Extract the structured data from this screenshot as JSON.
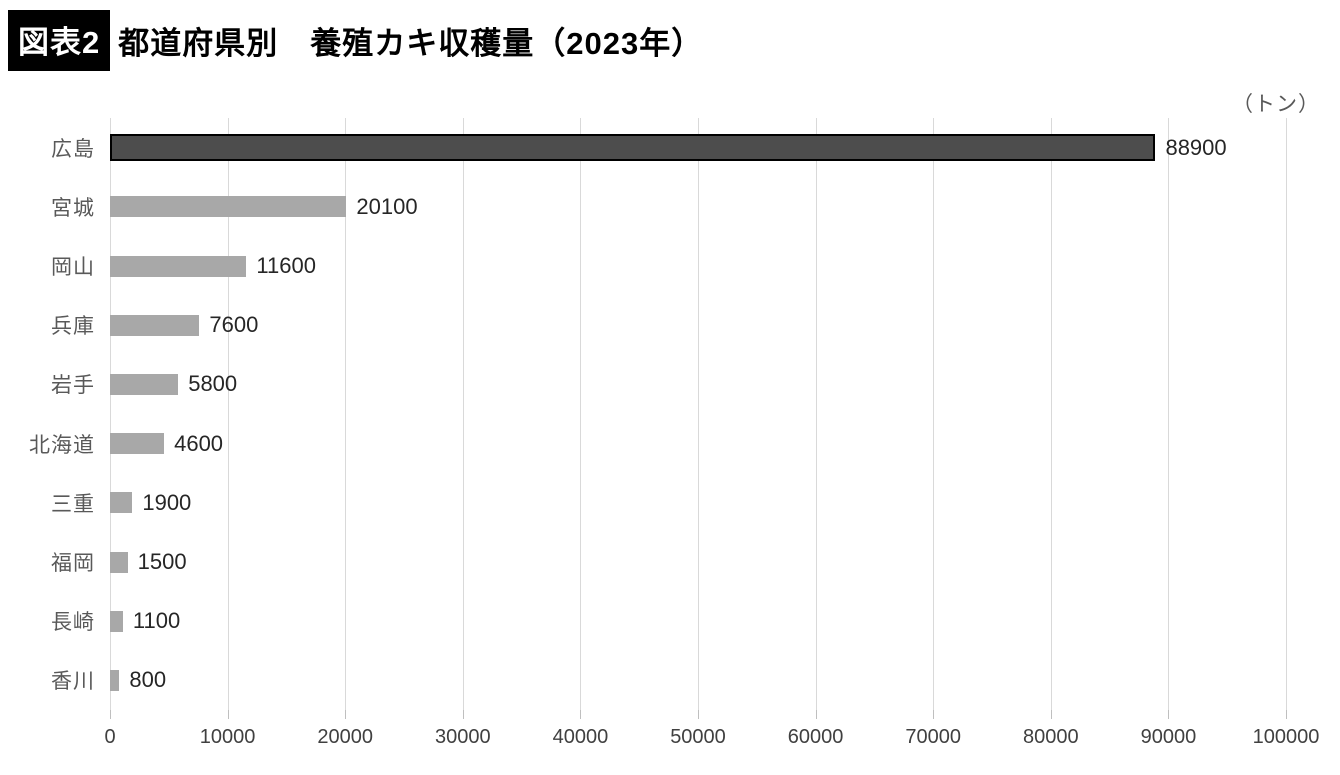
{
  "header": {
    "badge": "図表2",
    "title": "都道府県別　養殖カキ収穫量（2023年）",
    "unit": "（トン）"
  },
  "chart_data": {
    "type": "bar",
    "orientation": "horizontal",
    "title": "都道府県別 養殖カキ収穫量（2023年）",
    "unit": "トン",
    "categories": [
      "広島",
      "宮城",
      "岡山",
      "兵庫",
      "岩手",
      "北海道",
      "三重",
      "福岡",
      "長崎",
      "香川"
    ],
    "values": [
      88900,
      20100,
      11600,
      7600,
      5800,
      4600,
      1900,
      1500,
      1100,
      800
    ],
    "xlim": [
      0,
      100000
    ],
    "x_ticks": [
      0,
      10000,
      20000,
      30000,
      40000,
      50000,
      60000,
      70000,
      80000,
      90000,
      100000
    ],
    "grid": true,
    "value_labels": true,
    "highlight_index": 0,
    "colors": {
      "highlight_fill": "#4d4d4d",
      "highlight_border": "#000000",
      "bar_fill": "#a8a8a8",
      "gridline": "#d9d9d9",
      "category_label": "#595959",
      "value_label": "#262626",
      "axis_label": "#404040",
      "badge_bg": "#000000",
      "badge_text": "#ffffff"
    }
  }
}
